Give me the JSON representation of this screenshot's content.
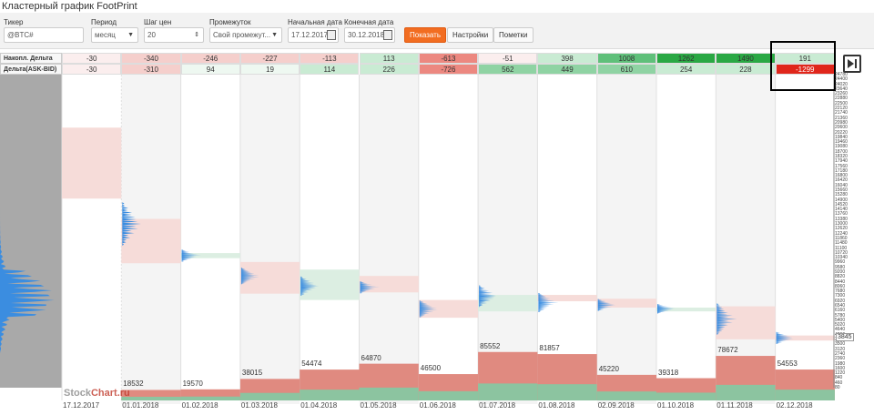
{
  "title": "Кластерный график FootPrint",
  "controls": {
    "ticker": {
      "label": "Тикер",
      "value": "@BTC#"
    },
    "period": {
      "label": "Период",
      "value": "месяц"
    },
    "step": {
      "label": "Шаг цен",
      "value": "20"
    },
    "range": {
      "label": "Промежуток",
      "value": "Свой промежут..."
    },
    "start": {
      "label": "Начальная дата",
      "value": "17.12.2017"
    },
    "end": {
      "label": "Конечная дата",
      "value": "30.12.2018"
    },
    "show_btn": "Показать",
    "settings_btn": "Настройки",
    "marks_btn": "Пометки"
  },
  "rows": {
    "cum_label": "Накопл. Дельта",
    "delta_label": "Дельта(ASK-BID)"
  },
  "colors": {
    "neg": "#d9534f",
    "pos": "#1e9e3a",
    "profile": "#3b8de0",
    "vol_sell": "#e08a80",
    "vol_buy": "#8cc4a0"
  },
  "chart_data": {
    "type": "table",
    "columns": [
      "17.12.2017",
      "01.01.2018",
      "01.02.2018",
      "01.03.2018",
      "01.04.2018",
      "01.05.2018",
      "01.06.2018",
      "01.07.2018",
      "01.08.2018",
      "02.09.2018",
      "01.10.2018",
      "01.11.2018",
      "02.12.2018"
    ],
    "cum_delta": [
      "-30",
      "-340",
      "-246",
      "-227",
      "-113",
      "113",
      "-613",
      "-51",
      "398",
      "1008",
      "1262",
      "1490",
      "191"
    ],
    "delta": [
      "-30",
      "-310",
      "94",
      "19",
      "114",
      "226",
      "-726",
      "562",
      "449",
      "610",
      "254",
      "228",
      "-1299"
    ],
    "volumes": [
      "",
      "18532",
      "19570",
      "38015",
      "54474",
      "64870",
      "46500",
      "85552",
      "81857",
      "45220",
      "39318",
      "78672",
      "54553"
    ],
    "current_price": "3845",
    "y_ticks": [
      "24780",
      "24400",
      "24020",
      "23640",
      "23260",
      "22880",
      "22500",
      "22120",
      "21740",
      "21360",
      "20980",
      "20600",
      "20220",
      "19840",
      "19460",
      "19080",
      "18700",
      "18320",
      "17940",
      "17560",
      "17180",
      "16800",
      "16420",
      "16040",
      "15660",
      "15280",
      "14900",
      "14520",
      "14140",
      "13760",
      "13380",
      "13000",
      "12620",
      "12240",
      "11860",
      "11480",
      "11100",
      "10720",
      "10340",
      "9960",
      "9580",
      "9200",
      "8820",
      "8440",
      "8060",
      "7680",
      "7300",
      "6920",
      "6540",
      "6160",
      "5780",
      "5400",
      "5020",
      "4640",
      "4260",
      "3880",
      "3500",
      "3120",
      "2740",
      "2360",
      "1980",
      "1600",
      "1220",
      "840",
      "460",
      "80"
    ]
  },
  "watermark": {
    "a": "Stock",
    "b": "Chart.ru"
  }
}
